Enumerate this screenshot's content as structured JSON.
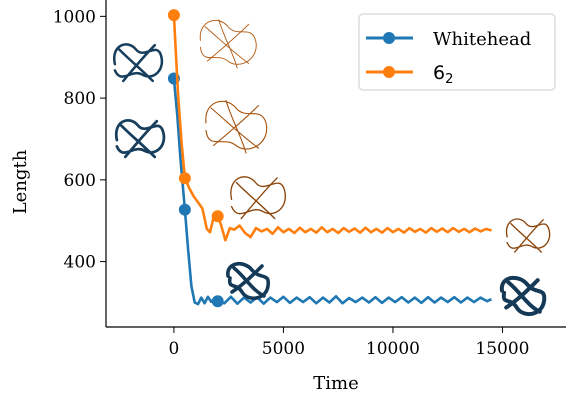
{
  "chart_data": {
    "type": "line",
    "title": "",
    "xlabel": "Time",
    "ylabel": "Length",
    "xlim": [
      -3100,
      17900
    ],
    "ylim": [
      240,
      1040
    ],
    "x_ticks": [
      0,
      5000,
      10000,
      15000
    ],
    "y_ticks": [
      400,
      600,
      800,
      1000
    ],
    "x_tick_labels": [
      "0",
      "5000",
      "10000",
      "15000"
    ],
    "y_tick_labels": [
      "400",
      "600",
      "800",
      "1000"
    ],
    "grid": false,
    "legend_placement": "top-right",
    "legend": {
      "whitehead_label": "Whitehead",
      "six2_label_main": "6",
      "six2_label_sub": "2"
    },
    "series": [
      {
        "name": "Whitehead",
        "color": "#1f77b4",
        "markers": [
          [
            0,
            848
          ],
          [
            500,
            527
          ],
          [
            2000,
            303
          ]
        ],
        "curve": [
          [
            0,
            848
          ],
          [
            150,
            760
          ],
          [
            300,
            650
          ],
          [
            500,
            527
          ],
          [
            650,
            430
          ],
          [
            800,
            340
          ],
          [
            950,
            300
          ],
          [
            1100,
            296
          ],
          [
            1250,
            312
          ],
          [
            1400,
            298
          ],
          [
            1550,
            314
          ],
          [
            1700,
            302
          ],
          [
            1850,
            308
          ],
          [
            2000,
            303
          ],
          [
            2300,
            298
          ],
          [
            2600,
            314
          ],
          [
            2900,
            297
          ],
          [
            3200,
            312
          ],
          [
            3500,
            300
          ],
          [
            3800,
            313
          ],
          [
            4100,
            297
          ],
          [
            4400,
            312
          ],
          [
            4700,
            301
          ],
          [
            5000,
            314
          ],
          [
            5300,
            299
          ],
          [
            5600,
            312
          ],
          [
            5900,
            301
          ],
          [
            6200,
            313
          ],
          [
            6500,
            298
          ],
          [
            6800,
            312
          ],
          [
            7100,
            300
          ],
          [
            7400,
            315
          ],
          [
            7700,
            298
          ],
          [
            8000,
            311
          ],
          [
            8300,
            301
          ],
          [
            8600,
            312
          ],
          [
            8900,
            300
          ],
          [
            9200,
            313
          ],
          [
            9500,
            299
          ],
          [
            9800,
            312
          ],
          [
            10100,
            301
          ],
          [
            10400,
            313
          ],
          [
            10700,
            300
          ],
          [
            11000,
            312
          ],
          [
            11300,
            299
          ],
          [
            11600,
            313
          ],
          [
            11900,
            300
          ],
          [
            12200,
            312
          ],
          [
            12500,
            301
          ],
          [
            12800,
            313
          ],
          [
            13100,
            300
          ],
          [
            13400,
            312
          ],
          [
            13700,
            301
          ],
          [
            14000,
            312
          ],
          [
            14300,
            303
          ],
          [
            14500,
            308
          ]
        ]
      },
      {
        "name": "6_2",
        "color": "#ff7f0e",
        "markers": [
          [
            0,
            1003
          ],
          [
            500,
            604
          ],
          [
            2000,
            511
          ]
        ],
        "curve": [
          [
            0,
            1003
          ],
          [
            100,
            900
          ],
          [
            200,
            800
          ],
          [
            350,
            690
          ],
          [
            500,
            604
          ],
          [
            700,
            580
          ],
          [
            900,
            560
          ],
          [
            1100,
            545
          ],
          [
            1300,
            530
          ],
          [
            1500,
            480
          ],
          [
            1650,
            472
          ],
          [
            1800,
            505
          ],
          [
            2000,
            511
          ],
          [
            2150,
            490
          ],
          [
            2350,
            452
          ],
          [
            2550,
            482
          ],
          [
            2750,
            478
          ],
          [
            3000,
            488
          ],
          [
            3250,
            470
          ],
          [
            3500,
            460
          ],
          [
            3750,
            482
          ],
          [
            4000,
            474
          ],
          [
            4250,
            480
          ],
          [
            4500,
            468
          ],
          [
            4750,
            484
          ],
          [
            5000,
            472
          ],
          [
            5250,
            480
          ],
          [
            5500,
            470
          ],
          [
            5750,
            483
          ],
          [
            6000,
            472
          ],
          [
            6250,
            480
          ],
          [
            6500,
            471
          ],
          [
            6750,
            484
          ],
          [
            7000,
            472
          ],
          [
            7250,
            480
          ],
          [
            7500,
            470
          ],
          [
            7750,
            482
          ],
          [
            8000,
            473
          ],
          [
            8250,
            481
          ],
          [
            8500,
            471
          ],
          [
            8750,
            483
          ],
          [
            9000,
            472
          ],
          [
            9250,
            480
          ],
          [
            9500,
            471
          ],
          [
            9750,
            482
          ],
          [
            10000,
            472
          ],
          [
            10250,
            480
          ],
          [
            10500,
            471
          ],
          [
            10750,
            482
          ],
          [
            11000,
            473
          ],
          [
            11250,
            480
          ],
          [
            11500,
            471
          ],
          [
            11750,
            482
          ],
          [
            12000,
            473
          ],
          [
            12250,
            481
          ],
          [
            12500,
            472
          ],
          [
            12750,
            482
          ],
          [
            13000,
            473
          ],
          [
            13250,
            480
          ],
          [
            13500,
            472
          ],
          [
            13750,
            481
          ],
          [
            14000,
            474
          ],
          [
            14250,
            480
          ],
          [
            14500,
            476
          ]
        ]
      }
    ]
  }
}
